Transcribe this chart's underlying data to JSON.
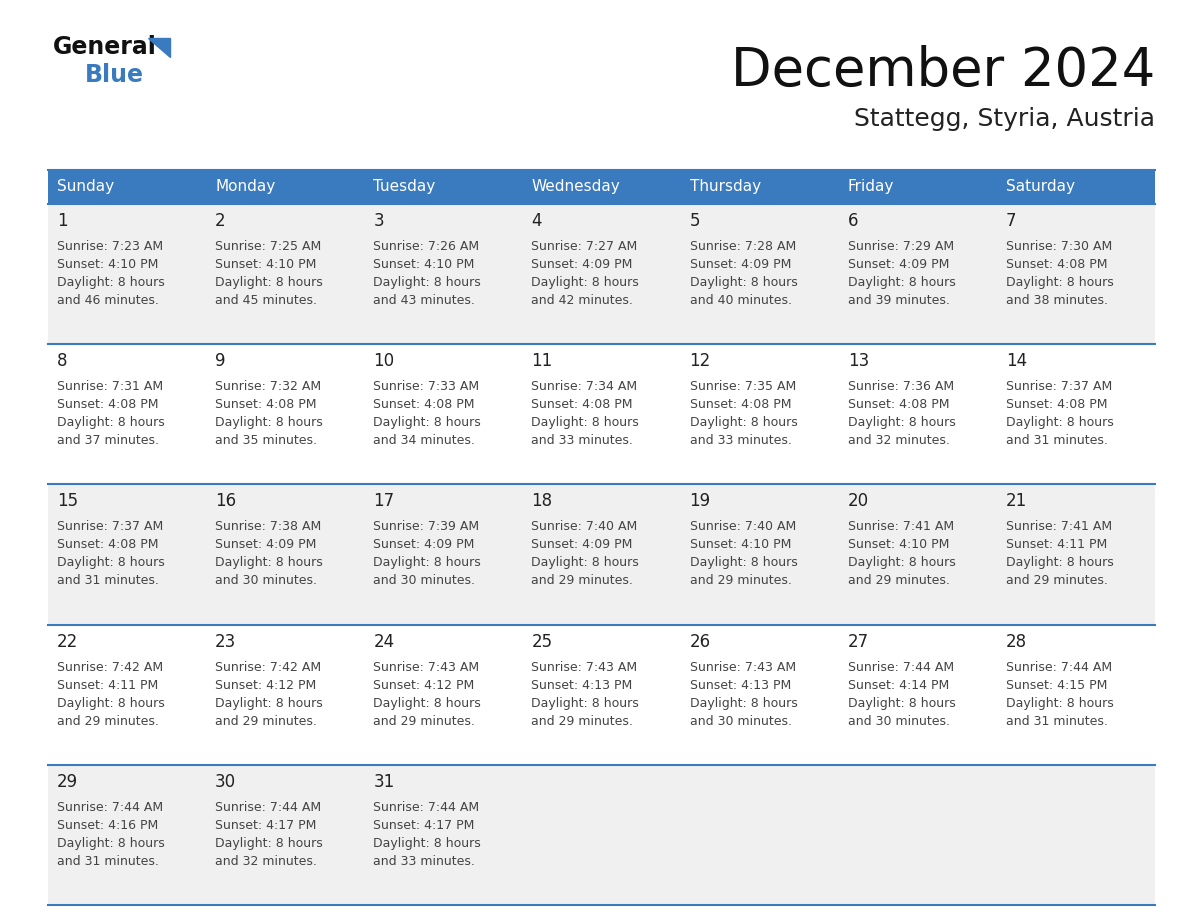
{
  "title": "December 2024",
  "subtitle": "Stattegg, Styria, Austria",
  "days_of_week": [
    "Sunday",
    "Monday",
    "Tuesday",
    "Wednesday",
    "Thursday",
    "Friday",
    "Saturday"
  ],
  "header_bg": "#3a7abf",
  "header_text": "#ffffff",
  "row_bg_odd": "#f0f0f0",
  "row_bg_even": "#ffffff",
  "border_color": "#3a7abf",
  "day_num_color": "#222222",
  "cell_text_color": "#444444",
  "title_color": "#111111",
  "subtitle_color": "#222222",
  "logo_general_color": "#111111",
  "logo_blue_color": "#3a7abf",
  "weeks": [
    [
      {
        "day": 1,
        "sunrise": "7:23 AM",
        "sunset": "4:10 PM",
        "daylight_min": "46"
      },
      {
        "day": 2,
        "sunrise": "7:25 AM",
        "sunset": "4:10 PM",
        "daylight_min": "45"
      },
      {
        "day": 3,
        "sunrise": "7:26 AM",
        "sunset": "4:10 PM",
        "daylight_min": "43"
      },
      {
        "day": 4,
        "sunrise": "7:27 AM",
        "sunset": "4:09 PM",
        "daylight_min": "42"
      },
      {
        "day": 5,
        "sunrise": "7:28 AM",
        "sunset": "4:09 PM",
        "daylight_min": "40"
      },
      {
        "day": 6,
        "sunrise": "7:29 AM",
        "sunset": "4:09 PM",
        "daylight_min": "39"
      },
      {
        "day": 7,
        "sunrise": "7:30 AM",
        "sunset": "4:08 PM",
        "daylight_min": "38"
      }
    ],
    [
      {
        "day": 8,
        "sunrise": "7:31 AM",
        "sunset": "4:08 PM",
        "daylight_min": "37"
      },
      {
        "day": 9,
        "sunrise": "7:32 AM",
        "sunset": "4:08 PM",
        "daylight_min": "35"
      },
      {
        "day": 10,
        "sunrise": "7:33 AM",
        "sunset": "4:08 PM",
        "daylight_min": "34"
      },
      {
        "day": 11,
        "sunrise": "7:34 AM",
        "sunset": "4:08 PM",
        "daylight_min": "33"
      },
      {
        "day": 12,
        "sunrise": "7:35 AM",
        "sunset": "4:08 PM",
        "daylight_min": "33"
      },
      {
        "day": 13,
        "sunrise": "7:36 AM",
        "sunset": "4:08 PM",
        "daylight_min": "32"
      },
      {
        "day": 14,
        "sunrise": "7:37 AM",
        "sunset": "4:08 PM",
        "daylight_min": "31"
      }
    ],
    [
      {
        "day": 15,
        "sunrise": "7:37 AM",
        "sunset": "4:08 PM",
        "daylight_min": "31"
      },
      {
        "day": 16,
        "sunrise": "7:38 AM",
        "sunset": "4:09 PM",
        "daylight_min": "30"
      },
      {
        "day": 17,
        "sunrise": "7:39 AM",
        "sunset": "4:09 PM",
        "daylight_min": "30"
      },
      {
        "day": 18,
        "sunrise": "7:40 AM",
        "sunset": "4:09 PM",
        "daylight_min": "29"
      },
      {
        "day": 19,
        "sunrise": "7:40 AM",
        "sunset": "4:10 PM",
        "daylight_min": "29"
      },
      {
        "day": 20,
        "sunrise": "7:41 AM",
        "sunset": "4:10 PM",
        "daylight_min": "29"
      },
      {
        "day": 21,
        "sunrise": "7:41 AM",
        "sunset": "4:11 PM",
        "daylight_min": "29"
      }
    ],
    [
      {
        "day": 22,
        "sunrise": "7:42 AM",
        "sunset": "4:11 PM",
        "daylight_min": "29"
      },
      {
        "day": 23,
        "sunrise": "7:42 AM",
        "sunset": "4:12 PM",
        "daylight_min": "29"
      },
      {
        "day": 24,
        "sunrise": "7:43 AM",
        "sunset": "4:12 PM",
        "daylight_min": "29"
      },
      {
        "day": 25,
        "sunrise": "7:43 AM",
        "sunset": "4:13 PM",
        "daylight_min": "29"
      },
      {
        "day": 26,
        "sunrise": "7:43 AM",
        "sunset": "4:13 PM",
        "daylight_min": "30"
      },
      {
        "day": 27,
        "sunrise": "7:44 AM",
        "sunset": "4:14 PM",
        "daylight_min": "30"
      },
      {
        "day": 28,
        "sunrise": "7:44 AM",
        "sunset": "4:15 PM",
        "daylight_min": "31"
      }
    ],
    [
      {
        "day": 29,
        "sunrise": "7:44 AM",
        "sunset": "4:16 PM",
        "daylight_min": "31"
      },
      {
        "day": 30,
        "sunrise": "7:44 AM",
        "sunset": "4:17 PM",
        "daylight_min": "32"
      },
      {
        "day": 31,
        "sunrise": "7:44 AM",
        "sunset": "4:17 PM",
        "daylight_min": "33"
      },
      null,
      null,
      null,
      null
    ]
  ]
}
